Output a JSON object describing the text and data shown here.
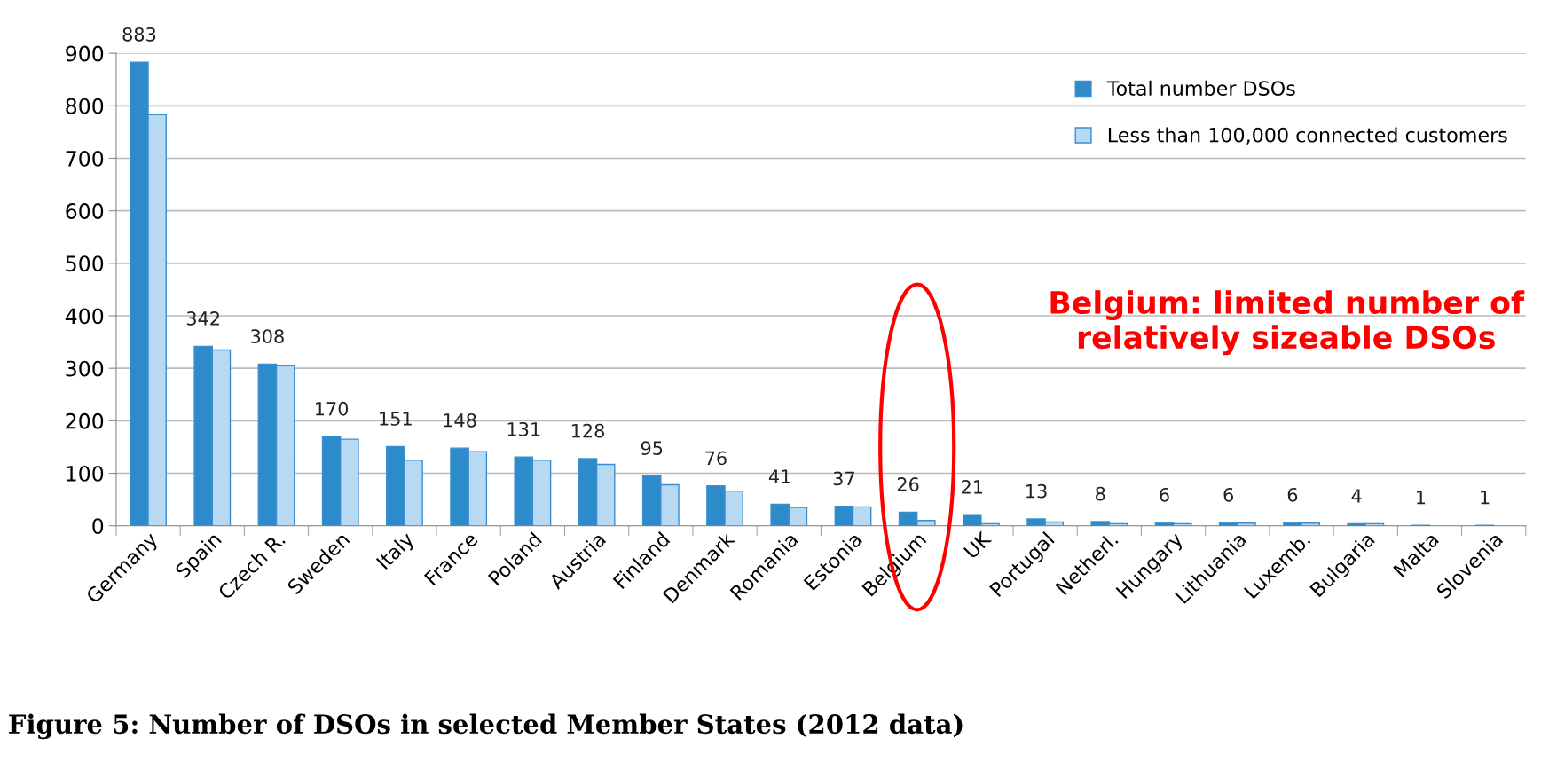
{
  "chart_data": {
    "type": "bar",
    "categories": [
      "Germany",
      "Spain",
      "Czech R.",
      "Sweden",
      "Italy",
      "France",
      "Poland",
      "Austria",
      "Finland",
      "Denmark",
      "Romania",
      "Estonia",
      "Belgium",
      "UK",
      "Portugal",
      "Netherl.",
      "Hungary",
      "Lithuania",
      "Luxemb.",
      "Bulgaria",
      "Malta",
      "Slovenia"
    ],
    "series": [
      {
        "name": "Total number DSOs",
        "color": "#2e8bc9",
        "values": [
          883,
          342,
          308,
          170,
          151,
          148,
          131,
          128,
          95,
          76,
          41,
          37,
          26,
          21,
          13,
          8,
          6,
          6,
          6,
          4,
          1,
          1
        ],
        "value_labels": [
          "883",
          "342",
          "308",
          "170",
          "151",
          "148",
          "131",
          "128",
          "95",
          "76",
          "41",
          "37",
          "26",
          "21",
          "13",
          "8",
          "6",
          "6",
          "6",
          "4",
          "1",
          "1"
        ]
      },
      {
        "name": "Less than 100,000 connected customers",
        "color": "#b7d9f2",
        "values": [
          783,
          335,
          305,
          165,
          125,
          141,
          125,
          117,
          78,
          66,
          35,
          36,
          10,
          4,
          7,
          4,
          4,
          5,
          5,
          4,
          0,
          0
        ]
      }
    ],
    "ylim": [
      0,
      900
    ],
    "yticks": [
      0,
      100,
      200,
      300,
      400,
      500,
      600,
      700,
      800,
      900
    ],
    "grid": "y",
    "legend": "top right",
    "annotations": [
      "Belgium: limited number of relatively sizeable DSOs",
      "Figure 5: Number of DSOs in selected Member States (2012 data)"
    ]
  }
}
